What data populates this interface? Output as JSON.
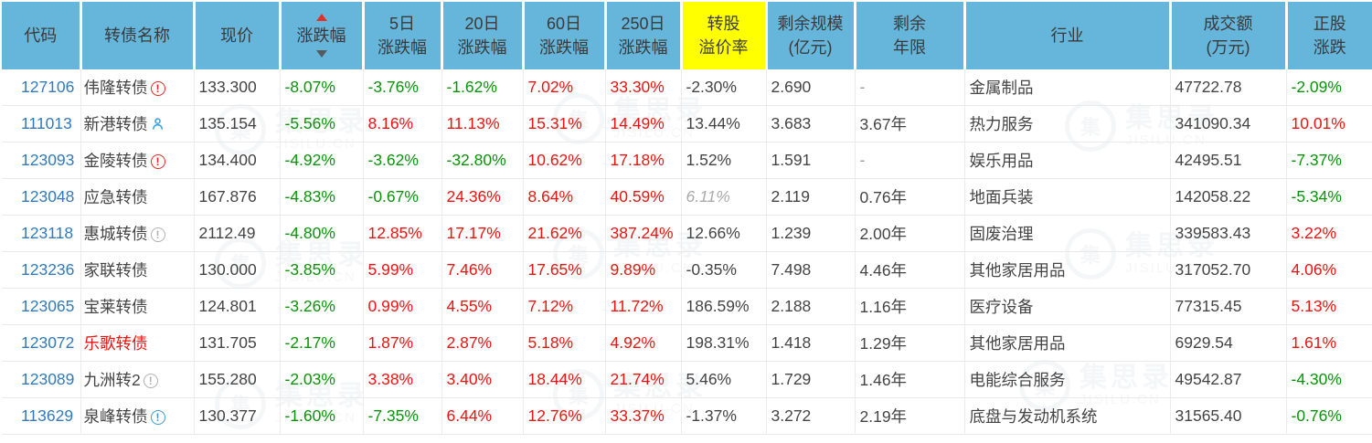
{
  "watermark": {
    "text": "集思录",
    "domain": "JISILU.CN",
    "logo_glyph": "卐"
  },
  "icons": {
    "alert-red": {
      "semantic": "warning-alert-icon",
      "glyph": "!",
      "color": "#e8281e"
    },
    "info-gray": {
      "semantic": "info-icon",
      "glyph": "!",
      "color": "#b0b0b0"
    },
    "info-blue": {
      "semantic": "info-icon",
      "glyph": "!",
      "color": "#3a9ad9"
    },
    "person-blue": {
      "semantic": "holder-person-icon",
      "glyph": "person",
      "color": "#41a3e3"
    }
  },
  "colors": {
    "header_bg": "#66b5da",
    "header_highlight_bg": "#ffff00",
    "up_red": "#ed1311",
    "down_green": "#089408",
    "code_link_blue": "#3279bd",
    "sort_asc_arrow": "#e03028",
    "sort_desc_arrow": "#555a60"
  },
  "table": {
    "columns": [
      {
        "id": "code",
        "label": "代码"
      },
      {
        "id": "name",
        "label": "转债名称"
      },
      {
        "id": "price",
        "label": "现价"
      },
      {
        "id": "change",
        "label": "涨跌幅",
        "sort": true
      },
      {
        "id": "change5",
        "label": "5日",
        "label2": "涨跌幅"
      },
      {
        "id": "change20",
        "label": "20日",
        "label2": "涨跌幅"
      },
      {
        "id": "change60",
        "label": "60日",
        "label2": "涨跌幅"
      },
      {
        "id": "change250",
        "label": "250日",
        "label2": "涨跌幅"
      },
      {
        "id": "premium",
        "label": "转股",
        "label2": "溢价率",
        "highlight": true
      },
      {
        "id": "scale",
        "label": "剩余规模",
        "label2": "(亿元)"
      },
      {
        "id": "years",
        "label": "剩余",
        "label2": "年限"
      },
      {
        "id": "industry",
        "label": "行业"
      },
      {
        "id": "turnover",
        "label": "成交额",
        "label2": "(万元)"
      },
      {
        "id": "stock",
        "label": "正股",
        "label2": "涨跌"
      }
    ],
    "rows": [
      {
        "code": "127106",
        "name": "伟隆转债",
        "icon": "alert-red",
        "price": "133.300",
        "chg": "-8.07%",
        "chg_c": "down",
        "d5": "-3.76%",
        "d5_c": "down",
        "d20": "-1.62%",
        "d20_c": "down",
        "d60": "7.02%",
        "d60_c": "up",
        "d250": "33.30%",
        "d250_c": "up",
        "premium": "-2.30%",
        "premium_est": false,
        "scale": "2.690",
        "years": "-",
        "industry": "金属制品",
        "turnover": "47722.78",
        "stock": "-2.09%",
        "stock_c": "down"
      },
      {
        "code": "111013",
        "name": "新港转债",
        "icon": "person-blue",
        "price": "135.154",
        "chg": "-5.56%",
        "chg_c": "down",
        "d5": "8.16%",
        "d5_c": "up",
        "d20": "11.13%",
        "d20_c": "up",
        "d60": "15.31%",
        "d60_c": "up",
        "d250": "14.49%",
        "d250_c": "up",
        "premium": "13.44%",
        "premium_est": false,
        "scale": "3.683",
        "years": "3.67年",
        "industry": "热力服务",
        "turnover": "341090.34",
        "stock": "10.01%",
        "stock_c": "up"
      },
      {
        "code": "123093",
        "name": "金陵转债",
        "icon": "alert-red",
        "price": "134.400",
        "chg": "-4.92%",
        "chg_c": "down",
        "d5": "-3.62%",
        "d5_c": "down",
        "d20": "-32.80%",
        "d20_c": "down",
        "d60": "10.62%",
        "d60_c": "up",
        "d250": "17.18%",
        "d250_c": "up",
        "premium": "1.52%",
        "premium_est": false,
        "scale": "1.591",
        "years": "-",
        "industry": "娱乐用品",
        "turnover": "42495.51",
        "stock": "-7.37%",
        "stock_c": "down"
      },
      {
        "code": "123048",
        "name": "应急转债",
        "icon": null,
        "price": "167.876",
        "chg": "-4.83%",
        "chg_c": "down",
        "d5": "-0.67%",
        "d5_c": "down",
        "d20": "24.36%",
        "d20_c": "up",
        "d60": "8.64%",
        "d60_c": "up",
        "d250": "40.59%",
        "d250_c": "up",
        "premium": "6.11%",
        "premium_est": true,
        "scale": "2.119",
        "years": "0.76年",
        "industry": "地面兵装",
        "turnover": "142058.22",
        "stock": "-5.34%",
        "stock_c": "down"
      },
      {
        "code": "123118",
        "name": "惠城转债",
        "icon": "info-gray",
        "price": "2112.49",
        "chg": "-4.80%",
        "chg_c": "down",
        "d5": "12.85%",
        "d5_c": "up",
        "d20": "17.17%",
        "d20_c": "up",
        "d60": "21.62%",
        "d60_c": "up",
        "d250": "387.24%",
        "d250_c": "up",
        "premium": "12.66%",
        "premium_est": false,
        "scale": "1.239",
        "years": "2.00年",
        "industry": "固废治理",
        "turnover": "339583.43",
        "stock": "3.22%",
        "stock_c": "up"
      },
      {
        "code": "123236",
        "name": "家联转债",
        "icon": null,
        "price": "130.000",
        "chg": "-3.85%",
        "chg_c": "down",
        "d5": "5.99%",
        "d5_c": "up",
        "d20": "7.46%",
        "d20_c": "up",
        "d60": "17.65%",
        "d60_c": "up",
        "d250": "9.89%",
        "d250_c": "up",
        "premium": "-0.35%",
        "premium_est": false,
        "scale": "7.498",
        "years": "4.46年",
        "industry": "其他家居用品",
        "turnover": "317052.70",
        "stock": "4.06%",
        "stock_c": "up"
      },
      {
        "code": "123065",
        "name": "宝莱转债",
        "icon": null,
        "price": "124.801",
        "chg": "-3.26%",
        "chg_c": "down",
        "d5": "0.99%",
        "d5_c": "up",
        "d20": "4.55%",
        "d20_c": "up",
        "d60": "7.12%",
        "d60_c": "up",
        "d250": "11.72%",
        "d250_c": "up",
        "premium": "186.59%",
        "premium_est": false,
        "scale": "2.188",
        "years": "1.16年",
        "industry": "医疗设备",
        "turnover": "77315.45",
        "stock": "5.13%",
        "stock_c": "up"
      },
      {
        "code": "123072",
        "name": "乐歌转债",
        "name_red": true,
        "icon": null,
        "price": "131.705",
        "chg": "-2.17%",
        "chg_c": "down",
        "d5": "1.87%",
        "d5_c": "up",
        "d20": "2.87%",
        "d20_c": "up",
        "d60": "5.18%",
        "d60_c": "up",
        "d250": "4.92%",
        "d250_c": "up",
        "premium": "198.31%",
        "premium_est": false,
        "scale": "1.418",
        "years": "1.29年",
        "industry": "其他家居用品",
        "turnover": "6929.54",
        "stock": "1.61%",
        "stock_c": "up"
      },
      {
        "code": "123089",
        "name": "九洲转2",
        "icon": "info-gray",
        "price": "155.280",
        "chg": "-2.03%",
        "chg_c": "down",
        "d5": "3.38%",
        "d5_c": "up",
        "d20": "3.40%",
        "d20_c": "up",
        "d60": "18.44%",
        "d60_c": "up",
        "d250": "21.74%",
        "d250_c": "up",
        "premium": "5.46%",
        "premium_est": false,
        "scale": "1.729",
        "years": "1.46年",
        "industry": "电能综合服务",
        "turnover": "49542.87",
        "stock": "-4.30%",
        "stock_c": "down"
      },
      {
        "code": "113629",
        "name": "泉峰转债",
        "icon": "info-blue",
        "price": "130.377",
        "chg": "-1.60%",
        "chg_c": "down",
        "d5": "-7.35%",
        "d5_c": "down",
        "d20": "6.44%",
        "d20_c": "up",
        "d60": "12.76%",
        "d60_c": "up",
        "d250": "33.37%",
        "d250_c": "up",
        "premium": "-1.37%",
        "premium_est": false,
        "scale": "3.272",
        "years": "2.19年",
        "industry": "底盘与发动机系统",
        "turnover": "31565.40",
        "stock": "-0.76%",
        "stock_c": "down"
      }
    ]
  }
}
